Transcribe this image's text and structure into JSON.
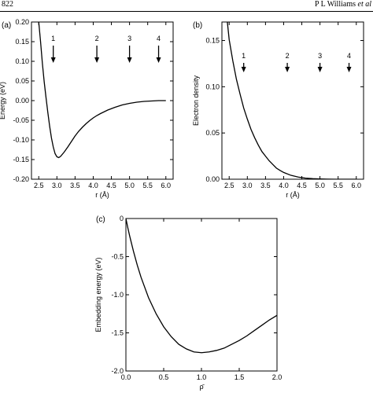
{
  "header": {
    "page_number": "822",
    "running_head": "P L Williams",
    "running_head_suffix": "et al"
  },
  "chart_data": [
    {
      "panel": "(a)",
      "type": "line",
      "xlabel": "r (Å)",
      "ylabel": "Energy (eV)",
      "xlim": [
        2.3,
        6.2
      ],
      "ylim": [
        -0.2,
        0.2
      ],
      "x_ticks": [
        "2.5",
        "3.0",
        "3.5",
        "4.0",
        "4.5",
        "5.0",
        "5.5",
        "6.0"
      ],
      "y_ticks": [
        "0.20",
        "0.15",
        "0.10",
        "0.05",
        "0.00",
        "-0.05",
        "-0.10",
        "-0.15",
        "-0.20"
      ],
      "x_tick_values": [
        2.5,
        3.0,
        3.5,
        4.0,
        4.5,
        5.0,
        5.5,
        6.0
      ],
      "y_tick_values": [
        0.2,
        0.15,
        0.1,
        0.05,
        0.0,
        -0.05,
        -0.1,
        -0.15,
        -0.2
      ],
      "markers": [
        {
          "label": "1",
          "x": 2.9
        },
        {
          "label": "2",
          "x": 4.1
        },
        {
          "label": "3",
          "x": 5.0
        },
        {
          "label": "4",
          "x": 5.8
        }
      ],
      "series": [
        {
          "x": [
            2.5,
            2.55,
            2.6,
            2.65,
            2.7,
            2.75,
            2.8,
            2.85,
            2.9,
            2.95,
            3.0,
            3.05,
            3.1,
            3.2,
            3.3,
            3.4,
            3.5,
            3.6,
            3.7,
            3.8,
            3.9,
            4.0,
            4.1,
            4.2,
            4.4,
            4.6,
            4.8,
            5.0,
            5.2,
            5.4,
            5.6,
            5.8,
            6.0
          ],
          "y": [
            0.2,
            0.15,
            0.095,
            0.048,
            0.008,
            -0.03,
            -0.065,
            -0.095,
            -0.118,
            -0.135,
            -0.143,
            -0.145,
            -0.142,
            -0.131,
            -0.118,
            -0.104,
            -0.09,
            -0.078,
            -0.068,
            -0.059,
            -0.051,
            -0.044,
            -0.038,
            -0.033,
            -0.024,
            -0.017,
            -0.011,
            -0.007,
            -0.004,
            -0.002,
            -0.001,
            0.0,
            0.0
          ]
        }
      ]
    },
    {
      "panel": "(b)",
      "type": "line",
      "xlabel": "r (Å)",
      "ylabel": "Electron density",
      "xlim": [
        2.3,
        6.2
      ],
      "ylim": [
        0.0,
        0.17
      ],
      "x_ticks": [
        "2.5",
        "3.0",
        "3.5",
        "4.0",
        "4.5",
        "5.0",
        "5.5",
        "6.0"
      ],
      "y_ticks": [
        "0.15",
        "0.10",
        "0.05",
        "0.00"
      ],
      "x_tick_values": [
        2.5,
        3.0,
        3.5,
        4.0,
        4.5,
        5.0,
        5.5,
        6.0
      ],
      "y_tick_values": [
        0.15,
        0.1,
        0.05,
        0.0
      ],
      "markers": [
        {
          "label": "1",
          "x": 2.9
        },
        {
          "label": "2",
          "x": 4.1
        },
        {
          "label": "3",
          "x": 5.0
        },
        {
          "label": "4",
          "x": 5.8
        }
      ],
      "series": [
        {
          "x": [
            2.45,
            2.5,
            2.6,
            2.7,
            2.8,
            2.9,
            3.0,
            3.1,
            3.2,
            3.3,
            3.4,
            3.5,
            3.6,
            3.7,
            3.8,
            3.9,
            4.0,
            4.2,
            4.4,
            4.6,
            4.8,
            5.0,
            5.2,
            5.4,
            5.6,
            5.8,
            6.0
          ],
          "y": [
            0.17,
            0.151,
            0.128,
            0.108,
            0.092,
            0.077,
            0.065,
            0.054,
            0.045,
            0.037,
            0.03,
            0.025,
            0.02,
            0.016,
            0.012,
            0.0095,
            0.0073,
            0.0042,
            0.0023,
            0.0012,
            0.0006,
            0.0003,
            0.0001,
            0.0,
            0.0,
            0.0,
            0.0
          ]
        }
      ]
    },
    {
      "panel": "(c)",
      "type": "line",
      "xlabel": "ρ̄",
      "ylabel": "Embedding energy (eV)",
      "xlim": [
        0.0,
        2.0
      ],
      "ylim": [
        -2.0,
        0.0
      ],
      "x_ticks": [
        "0.0",
        "0.5",
        "1.0",
        "1.5",
        "2.0"
      ],
      "y_ticks": [
        "0",
        "-0.5",
        "-1.0",
        "-1.5",
        "-2.0"
      ],
      "x_tick_values": [
        0.0,
        0.5,
        1.0,
        1.5,
        2.0
      ],
      "y_tick_values": [
        0.0,
        -0.5,
        -1.0,
        -1.5,
        -2.0
      ],
      "series": [
        {
          "x": [
            0.0,
            0.025,
            0.05,
            0.1,
            0.15,
            0.2,
            0.3,
            0.4,
            0.5,
            0.6,
            0.7,
            0.8,
            0.9,
            1.0,
            1.1,
            1.2,
            1.3,
            1.4,
            1.5,
            1.6,
            1.7,
            1.8,
            1.9,
            2.0
          ],
          "y": [
            0.0,
            -0.12,
            -0.23,
            -0.43,
            -0.61,
            -0.77,
            -1.04,
            -1.25,
            -1.42,
            -1.55,
            -1.65,
            -1.71,
            -1.75,
            -1.76,
            -1.75,
            -1.73,
            -1.7,
            -1.65,
            -1.6,
            -1.54,
            -1.47,
            -1.4,
            -1.33,
            -1.27
          ]
        }
      ]
    }
  ]
}
